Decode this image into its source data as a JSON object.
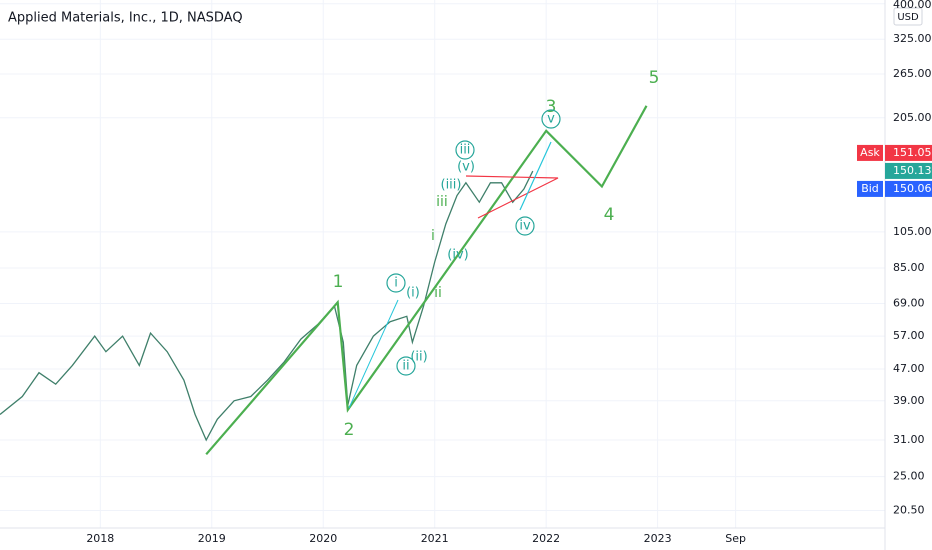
{
  "chart_data": {
    "type": "line",
    "title": "Applied Materials, Inc., 1D, NASDAQ",
    "currency": "USD",
    "log_scale": true,
    "grid": true,
    "color": "#3f7f6a",
    "x": [
      2017.1,
      2017.3,
      2017.45,
      2017.6,
      2017.75,
      2017.95,
      2018.05,
      2018.2,
      2018.35,
      2018.45,
      2018.6,
      2018.75,
      2018.85,
      2018.95,
      2019.05,
      2019.2,
      2019.35,
      2019.5,
      2019.65,
      2019.8,
      2019.95,
      2020.1,
      2020.18,
      2020.22,
      2020.3,
      2020.45,
      2020.6,
      2020.75,
      2020.8,
      2020.9,
      2021.0,
      2021.1,
      2021.2,
      2021.28,
      2021.4,
      2021.5,
      2021.6,
      2021.7,
      2021.8,
      2021.88
    ],
    "values": [
      36,
      40,
      46,
      43,
      48,
      57,
      52,
      57,
      48,
      58,
      52,
      44,
      36,
      31,
      35,
      39,
      40,
      44,
      49,
      56,
      61,
      68,
      55,
      38,
      48,
      57,
      62,
      64,
      55,
      68,
      88,
      110,
      130,
      140,
      125,
      140,
      140,
      125,
      135,
      150
    ],
    "overlays": [
      {
        "color": "#4caf50",
        "x": [
          2018.95,
          2020.13,
          2020.22,
          2022.0,
          2022.5,
          2022.9
        ],
        "values": [
          28.5,
          69.5,
          37,
          190,
          137,
          220
        ]
      }
    ],
    "annotations": [
      "1",
      "2",
      "3",
      "4",
      "5",
      "i",
      "(i)",
      "ii",
      "(ii)",
      "(iii)",
      "iii",
      "(v)",
      "iii",
      "i",
      "(iv)",
      "ii",
      "iv",
      "v"
    ],
    "xlim": [
      2017.1,
      2025.04
    ],
    "xticks": [
      2018,
      2019,
      2020,
      2021,
      2022,
      2023,
      {
        "value": 2023.7,
        "label": "Sep"
      }
    ],
    "ylim": [
      18.5,
      409
    ],
    "yticks": [
      {
        "value": 20.5,
        "label": "20.50"
      },
      {
        "value": 25,
        "label": "25.00"
      },
      {
        "value": 31,
        "label": "31.00"
      },
      {
        "value": 39,
        "label": "39.00"
      },
      {
        "value": 47,
        "label": "47.00"
      },
      {
        "value": 57,
        "label": "57.00"
      },
      {
        "value": 69,
        "label": "69.00"
      },
      {
        "value": 85,
        "label": "85.00"
      },
      {
        "value": 105,
        "label": "105.00"
      },
      {
        "value": 205,
        "label": "205.00"
      },
      {
        "value": 265,
        "label": "265.00"
      },
      {
        "value": 325,
        "label": "325.00"
      },
      {
        "value": 400,
        "label": "400.00"
      }
    ],
    "price_tags": [
      {
        "label": "Ask",
        "value": 151.05,
        "color": "#f23645"
      },
      {
        "value": 150.13,
        "color": "#26a69a"
      },
      {
        "label": "Bid",
        "value": 150.06,
        "color": "#2962ff"
      }
    ]
  }
}
